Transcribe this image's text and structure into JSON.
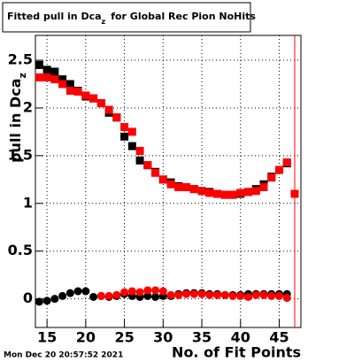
{
  "chart_data": {
    "type": "scatter",
    "title": "Fitted pull in Dca",
    "title_sub": "z",
    "title_rest": "for Global Rec Pion NoHits",
    "ylabel": "pull in Dca",
    "ylabel_sub": "z",
    "xlabel": "No. of Fit Points",
    "timestamp": "Mon Dec 20 20:57:52 2021",
    "x": [
      14,
      15,
      16,
      17,
      18,
      19,
      20,
      21,
      22,
      23,
      24,
      25,
      26,
      27,
      28,
      29,
      30,
      31,
      32,
      33,
      34,
      35,
      36,
      37,
      38,
      39,
      40,
      41,
      42,
      43,
      44,
      45,
      46,
      47
    ],
    "series": [
      {
        "color": "#000000",
        "marker": "square",
        "values": [
          2.45,
          2.4,
          2.38,
          2.3,
          2.25,
          2.18,
          2.12,
          2.1,
          2.05,
          1.95,
          1.9,
          1.7,
          1.6,
          1.45,
          1.4,
          1.33,
          1.25,
          1.22,
          1.18,
          1.17,
          1.15,
          1.13,
          1.12,
          1.1,
          1.09,
          1.09,
          1.1,
          1.12,
          1.15,
          1.2,
          1.28,
          1.35,
          1.42,
          null
        ]
      },
      {
        "color": "#ff0000",
        "marker": "square",
        "values": [
          2.32,
          2.32,
          2.3,
          2.25,
          2.18,
          2.17,
          2.13,
          2.1,
          2.05,
          1.98,
          1.9,
          1.8,
          1.75,
          1.55,
          1.4,
          1.32,
          1.25,
          1.2,
          1.17,
          1.17,
          1.15,
          1.13,
          1.11,
          1.1,
          1.09,
          1.09,
          1.11,
          1.12,
          1.13,
          1.17,
          1.27,
          1.35,
          1.43,
          1.1
        ]
      },
      {
        "color": "#000000",
        "marker": "circle",
        "values": [
          -0.03,
          -0.02,
          0.0,
          0.03,
          0.06,
          0.08,
          0.08,
          0.02,
          0.03,
          0.02,
          0.03,
          0.05,
          0.03,
          0.02,
          0.03,
          0.02,
          0.03,
          0.03,
          0.05,
          0.06,
          0.06,
          0.06,
          0.05,
          0.05,
          0.04,
          0.04,
          0.04,
          0.05,
          0.05,
          0.05,
          0.05,
          0.05,
          0.05,
          null
        ]
      },
      {
        "color": "#ff0000",
        "marker": "circle",
        "values": [
          null,
          null,
          null,
          null,
          null,
          null,
          null,
          null,
          0.03,
          0.03,
          0.04,
          0.07,
          0.08,
          0.07,
          0.09,
          0.09,
          0.08,
          0.04,
          0.04,
          0.05,
          0.05,
          0.05,
          0.04,
          0.04,
          0.04,
          0.03,
          0.03,
          0.02,
          0.04,
          0.04,
          0.03,
          0.03,
          0.01,
          null
        ]
      }
    ],
    "xlim": [
      13.5,
      47.8
    ],
    "ylim": [
      -0.3,
      2.76
    ],
    "xticks": [
      15,
      20,
      25,
      30,
      35,
      40,
      45
    ],
    "yticks": [
      0,
      0.5,
      1,
      1.5,
      2,
      2.5
    ],
    "grid": true
  }
}
